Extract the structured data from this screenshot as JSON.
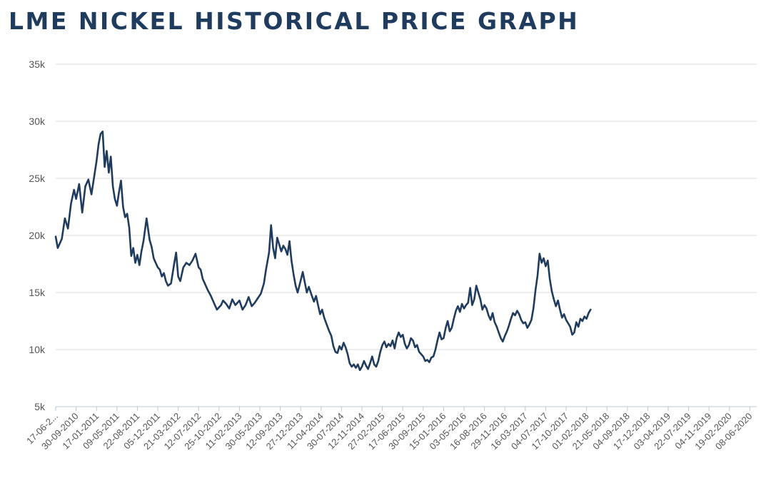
{
  "title": "LME NICKEL HISTORICAL PRICE GRAPH",
  "chart_data": {
    "type": "line",
    "title": "LME NICKEL HISTORICAL PRICE GRAPH",
    "xlabel": "",
    "ylabel": "",
    "ylim": [
      5000,
      35000
    ],
    "grid": true,
    "legend": "none",
    "line_color": "#1f3c5e",
    "y_ticks": [
      {
        "value": 5000,
        "label": "5k"
      },
      {
        "value": 10000,
        "label": "10k"
      },
      {
        "value": 15000,
        "label": "15k"
      },
      {
        "value": 20000,
        "label": "20k"
      },
      {
        "value": 25000,
        "label": "25k"
      },
      {
        "value": 30000,
        "label": "30k"
      },
      {
        "value": 35000,
        "label": "35k"
      }
    ],
    "x_ticks": [
      "17-06-2...",
      "30-09-2010",
      "17-01-2011",
      "09-05-2011",
      "22-08-2011",
      "05-12-2011",
      "21-03-2012",
      "12-07-2012",
      "25-10-2012",
      "11-02-2013",
      "30-05-2013",
      "12-09-2013",
      "27-12-2013",
      "11-04-2014",
      "30-07-2014",
      "12-11-2014",
      "27-02-2015",
      "17-06-2015",
      "30-09-2015",
      "15-01-2016",
      "03-05-2016",
      "16-08-2016",
      "29-11-2016",
      "16-03-2017",
      "04-07-2017",
      "17-10-2017",
      "01-02-2018",
      "21-05-2018",
      "04-09-2018",
      "17-12-2018",
      "03-04-2019",
      "22-07-2019",
      "04-11-2019",
      "19-02-2020",
      "08-06-2020"
    ],
    "series": [
      {
        "name": "LME Nickel",
        "points": [
          [
            0,
            19900
          ],
          [
            0.1,
            18900
          ],
          [
            0.3,
            19700
          ],
          [
            0.45,
            21500
          ],
          [
            0.6,
            20600
          ],
          [
            0.75,
            22800
          ],
          [
            0.9,
            24000
          ],
          [
            1.0,
            23200
          ],
          [
            1.15,
            24500
          ],
          [
            1.3,
            22000
          ],
          [
            1.45,
            24300
          ],
          [
            1.6,
            24900
          ],
          [
            1.75,
            23600
          ],
          [
            1.9,
            25300
          ],
          [
            2.0,
            26500
          ],
          [
            2.1,
            28000
          ],
          [
            2.2,
            28900
          ],
          [
            2.3,
            29100
          ],
          [
            2.4,
            26000
          ],
          [
            2.5,
            27400
          ],
          [
            2.6,
            25500
          ],
          [
            2.7,
            26900
          ],
          [
            2.8,
            24300
          ],
          [
            2.9,
            23200
          ],
          [
            3.0,
            22600
          ],
          [
            3.1,
            23800
          ],
          [
            3.2,
            24800
          ],
          [
            3.3,
            22500
          ],
          [
            3.4,
            21600
          ],
          [
            3.5,
            21900
          ],
          [
            3.6,
            20700
          ],
          [
            3.7,
            18200
          ],
          [
            3.8,
            18900
          ],
          [
            3.9,
            17600
          ],
          [
            4.0,
            18300
          ],
          [
            4.1,
            17400
          ],
          [
            4.2,
            18600
          ],
          [
            4.3,
            19500
          ],
          [
            4.45,
            21500
          ],
          [
            4.6,
            19600
          ],
          [
            4.7,
            19000
          ],
          [
            4.8,
            18000
          ],
          [
            4.9,
            17600
          ],
          [
            5.0,
            17200
          ],
          [
            5.1,
            17000
          ],
          [
            5.2,
            16400
          ],
          [
            5.3,
            16700
          ],
          [
            5.4,
            16000
          ],
          [
            5.5,
            15600
          ],
          [
            5.65,
            15800
          ],
          [
            5.8,
            17500
          ],
          [
            5.9,
            18500
          ],
          [
            6.0,
            16400
          ],
          [
            6.1,
            16000
          ],
          [
            6.25,
            17200
          ],
          [
            6.4,
            17600
          ],
          [
            6.55,
            17400
          ],
          [
            6.7,
            17800
          ],
          [
            6.85,
            18400
          ],
          [
            7.0,
            17200
          ],
          [
            7.1,
            17000
          ],
          [
            7.2,
            16200
          ],
          [
            7.3,
            15800
          ],
          [
            7.45,
            15200
          ],
          [
            7.6,
            14700
          ],
          [
            7.75,
            14100
          ],
          [
            7.9,
            13500
          ],
          [
            8.0,
            13700
          ],
          [
            8.1,
            13900
          ],
          [
            8.2,
            14300
          ],
          [
            8.35,
            14000
          ],
          [
            8.5,
            13600
          ],
          [
            8.65,
            14400
          ],
          [
            8.8,
            13900
          ],
          [
            9.0,
            14300
          ],
          [
            9.15,
            13500
          ],
          [
            9.3,
            13900
          ],
          [
            9.45,
            14600
          ],
          [
            9.6,
            13800
          ],
          [
            9.75,
            14100
          ],
          [
            9.9,
            14500
          ],
          [
            10.05,
            14900
          ],
          [
            10.2,
            15800
          ],
          [
            10.3,
            17000
          ],
          [
            10.45,
            18500
          ],
          [
            10.55,
            20900
          ],
          [
            10.65,
            18900
          ],
          [
            10.75,
            18000
          ],
          [
            10.85,
            19800
          ],
          [
            10.95,
            19200
          ],
          [
            11.05,
            18600
          ],
          [
            11.15,
            19100
          ],
          [
            11.25,
            18800
          ],
          [
            11.35,
            18300
          ],
          [
            11.45,
            19500
          ],
          [
            11.55,
            17800
          ],
          [
            11.65,
            16600
          ],
          [
            11.75,
            15600
          ],
          [
            11.85,
            15000
          ],
          [
            11.95,
            15700
          ],
          [
            12.1,
            16800
          ],
          [
            12.2,
            15900
          ],
          [
            12.3,
            15000
          ],
          [
            12.4,
            15500
          ],
          [
            12.55,
            14700
          ],
          [
            12.65,
            14200
          ],
          [
            12.75,
            14700
          ],
          [
            12.85,
            13900
          ],
          [
            12.95,
            13100
          ],
          [
            13.05,
            13500
          ],
          [
            13.15,
            12800
          ],
          [
            13.25,
            12300
          ],
          [
            13.4,
            11600
          ],
          [
            13.5,
            11200
          ],
          [
            13.6,
            10300
          ],
          [
            13.7,
            9800
          ],
          [
            13.8,
            9700
          ],
          [
            13.9,
            10300
          ],
          [
            14.0,
            10000
          ],
          [
            14.1,
            10600
          ],
          [
            14.2,
            10200
          ],
          [
            14.3,
            9600
          ],
          [
            14.4,
            8800
          ],
          [
            14.5,
            8500
          ],
          [
            14.6,
            8700
          ],
          [
            14.7,
            8400
          ],
          [
            14.8,
            8700
          ],
          [
            14.9,
            8200
          ],
          [
            15.0,
            8500
          ],
          [
            15.1,
            9000
          ],
          [
            15.2,
            8600
          ],
          [
            15.3,
            8300
          ],
          [
            15.4,
            8800
          ],
          [
            15.5,
            9400
          ],
          [
            15.6,
            8700
          ],
          [
            15.7,
            8500
          ],
          [
            15.8,
            9000
          ],
          [
            15.9,
            9800
          ],
          [
            16.0,
            10400
          ],
          [
            16.1,
            10700
          ],
          [
            16.2,
            10200
          ],
          [
            16.3,
            10500
          ],
          [
            16.4,
            10300
          ],
          [
            16.5,
            10800
          ],
          [
            16.6,
            10100
          ],
          [
            16.7,
            11000
          ],
          [
            16.8,
            11500
          ],
          [
            16.9,
            11100
          ],
          [
            17.0,
            11300
          ],
          [
            17.1,
            10500
          ],
          [
            17.2,
            10100
          ],
          [
            17.3,
            10400
          ],
          [
            17.4,
            11000
          ],
          [
            17.5,
            10800
          ],
          [
            17.6,
            10200
          ],
          [
            17.7,
            10400
          ],
          [
            17.8,
            9800
          ],
          [
            17.9,
            9600
          ],
          [
            18.0,
            9400
          ],
          [
            18.1,
            9000
          ],
          [
            18.2,
            9100
          ],
          [
            18.3,
            8900
          ],
          [
            18.4,
            9300
          ],
          [
            18.5,
            9400
          ],
          [
            18.6,
            10000
          ],
          [
            18.7,
            10800
          ],
          [
            18.8,
            11500
          ],
          [
            18.9,
            10900
          ],
          [
            19.0,
            11000
          ],
          [
            19.1,
            11900
          ],
          [
            19.2,
            12500
          ],
          [
            19.3,
            11600
          ],
          [
            19.4,
            11900
          ],
          [
            19.5,
            12700
          ],
          [
            19.6,
            13400
          ],
          [
            19.7,
            13800
          ],
          [
            19.8,
            13300
          ],
          [
            19.9,
            14000
          ],
          [
            20.0,
            13600
          ],
          [
            20.1,
            13900
          ],
          [
            20.2,
            14100
          ],
          [
            20.3,
            15400
          ],
          [
            20.4,
            13900
          ],
          [
            20.5,
            14400
          ],
          [
            20.6,
            15600
          ],
          [
            20.7,
            15000
          ],
          [
            20.8,
            14400
          ],
          [
            20.9,
            13500
          ],
          [
            21.0,
            13900
          ],
          [
            21.1,
            13600
          ],
          [
            21.2,
            13000
          ],
          [
            21.3,
            12600
          ],
          [
            21.4,
            13200
          ],
          [
            21.5,
            12400
          ],
          [
            21.6,
            12000
          ],
          [
            21.7,
            11500
          ],
          [
            21.8,
            11000
          ],
          [
            21.9,
            10700
          ],
          [
            22.0,
            11200
          ],
          [
            22.1,
            11600
          ],
          [
            22.2,
            12100
          ],
          [
            22.3,
            12700
          ],
          [
            22.4,
            13200
          ],
          [
            22.5,
            13000
          ],
          [
            22.6,
            13400
          ],
          [
            22.7,
            13100
          ],
          [
            22.8,
            12600
          ],
          [
            22.9,
            12300
          ],
          [
            23.0,
            12400
          ],
          [
            23.1,
            11900
          ],
          [
            23.2,
            12200
          ],
          [
            23.3,
            12600
          ],
          [
            23.4,
            13600
          ],
          [
            23.5,
            15200
          ],
          [
            23.6,
            16500
          ],
          [
            23.7,
            18400
          ],
          [
            23.8,
            17600
          ],
          [
            23.9,
            18000
          ],
          [
            24.0,
            17300
          ],
          [
            24.1,
            17800
          ],
          [
            24.2,
            16200
          ],
          [
            24.3,
            15100
          ],
          [
            24.4,
            14400
          ],
          [
            24.5,
            13800
          ],
          [
            24.6,
            14300
          ],
          [
            24.7,
            13500
          ],
          [
            24.8,
            12800
          ],
          [
            24.9,
            13100
          ],
          [
            25.0,
            12600
          ],
          [
            25.1,
            12300
          ],
          [
            25.2,
            12000
          ],
          [
            25.3,
            11300
          ],
          [
            25.4,
            11500
          ],
          [
            25.5,
            12400
          ],
          [
            25.6,
            12000
          ],
          [
            25.7,
            12700
          ],
          [
            25.8,
            12500
          ],
          [
            25.9,
            12900
          ],
          [
            26.0,
            12700
          ],
          [
            26.1,
            13200
          ],
          [
            26.2,
            13500
          ]
        ]
      }
    ]
  }
}
